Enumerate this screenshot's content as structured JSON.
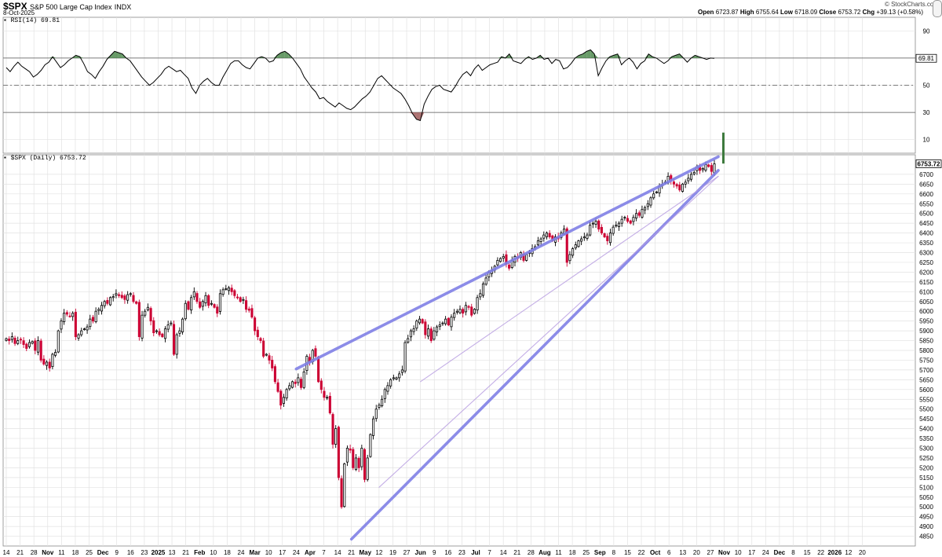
{
  "header": {
    "symbol": "$SPX",
    "description": "S&P 500 Large Cap Index",
    "exchange": "INDX",
    "date": "8-Oct-2025",
    "brand": "© StockCharts.com",
    "open_label": "Open",
    "open": "6723.87",
    "high_label": "High",
    "high": "6755.64",
    "low_label": "Low",
    "low": "6718.09",
    "close_label": "Close",
    "close": "6753.72",
    "chg_label": "Chg",
    "chg": "+39.13 (+0.58%)"
  },
  "chart_data": [
    {
      "type": "line",
      "panel": "rsi",
      "label": "RSI(14) 69.81",
      "last_value_label": "69.81",
      "ylim": [
        0,
        100
      ],
      "yticks": [
        10,
        30,
        50,
        70,
        90
      ],
      "reference_lines": [
        30,
        50,
        70
      ],
      "overbought": 70,
      "oversold": 30,
      "values": [
        63,
        60,
        64,
        67,
        64,
        62,
        60,
        56,
        58,
        61,
        65,
        67,
        71,
        67,
        63,
        65,
        68,
        70,
        72,
        71,
        66,
        60,
        58,
        55,
        60,
        64,
        69,
        72,
        75,
        74,
        73,
        70,
        68,
        64,
        60,
        56,
        53,
        50,
        52,
        55,
        58,
        62,
        64,
        62,
        60,
        61,
        58,
        55,
        48,
        44,
        50,
        53,
        55,
        52,
        50,
        50,
        56,
        61,
        66,
        68,
        68,
        65,
        63,
        62,
        66,
        70,
        71,
        70,
        67,
        68,
        72,
        74,
        75,
        73,
        70,
        66,
        62,
        56,
        52,
        48,
        45,
        40,
        41,
        38,
        36,
        34,
        37,
        35,
        33,
        32,
        34,
        37,
        40,
        42,
        45,
        50,
        55,
        57,
        54,
        51,
        48,
        46,
        44,
        40,
        35,
        29,
        25,
        24,
        36,
        42,
        47,
        49,
        50,
        47,
        46,
        45,
        49,
        54,
        58,
        60,
        57,
        62,
        65,
        61,
        63,
        65,
        66,
        67,
        71,
        70,
        73,
        68,
        67,
        66,
        69,
        71,
        69,
        70,
        72,
        69,
        70,
        66,
        69,
        68,
        62,
        63,
        66,
        70,
        72,
        73,
        75,
        76,
        73,
        57,
        63,
        68,
        71,
        72,
        73,
        65,
        68,
        70,
        67,
        62,
        66,
        68,
        73,
        71,
        70,
        68,
        66,
        68,
        71,
        72,
        73,
        70,
        67,
        70,
        72,
        71,
        70,
        69,
        70,
        69.81
      ],
      "shaded_overbought_x": [
        "Jul 3",
        "Jul 31",
        "Sep 22"
      ],
      "shaded_oversold_x": [
        "Apr 8"
      ]
    },
    {
      "type": "candlestick",
      "panel": "price",
      "label": "$SPX (Daily) 6753.72",
      "last_value_label": "6753.72",
      "ylim": [
        4800,
        6800
      ],
      "yticks": [
        4850,
        4900,
        4950,
        5000,
        5050,
        5100,
        5150,
        5200,
        5250,
        5300,
        5350,
        5400,
        5450,
        5500,
        5550,
        5600,
        5650,
        5700,
        5750,
        5800,
        5850,
        5900,
        5950,
        6000,
        6050,
        6100,
        6150,
        6200,
        6250,
        6300,
        6350,
        6400,
        6450,
        6500,
        6550,
        6600,
        6650,
        6700
      ],
      "x_tick_labels": [
        "14",
        "21",
        "28",
        "Nov",
        "11",
        "18",
        "25",
        "Dec",
        "9",
        "16",
        "23",
        "2025",
        "13",
        "21",
        "Feb",
        "10",
        "18",
        "24",
        "Mar",
        "10",
        "17",
        "24",
        "Apr",
        "7",
        "14",
        "21",
        "May",
        "12",
        "19",
        "27",
        "Jun",
        "9",
        "16",
        "23",
        "Jul",
        "7",
        "14",
        "21",
        "28",
        "Aug",
        "11",
        "18",
        "25",
        "Sep",
        "8",
        "15",
        "22",
        "Oct",
        "6",
        "13",
        "20",
        "27",
        "Nov",
        "10",
        "17",
        "24",
        "Dec",
        "8",
        "15",
        "22",
        "2026",
        "12",
        "20"
      ],
      "bold_tick_labels": [
        "Nov",
        "Dec",
        "2025",
        "Feb",
        "Mar",
        "Apr",
        "May",
        "Jun",
        "Jul",
        "Aug",
        "Sep",
        "Oct",
        "Nov",
        "Dec",
        "2026"
      ],
      "start_date": "2024-10-14",
      "end_date": "2025-10-08",
      "up_color": "#000000",
      "down_color": "#cc0033",
      "trendlines": [
        {
          "kind": "bold",
          "from": [
            "2025-03-10",
            5705
          ],
          "to": [
            "2025-10-10",
            6790
          ]
        },
        {
          "kind": "bold",
          "from": [
            "2025-04-07",
            4835
          ],
          "to": [
            "2025-10-10",
            6720
          ]
        },
        {
          "kind": "thin",
          "from": [
            "2025-04-21",
            5100
          ],
          "to": [
            "2025-10-10",
            6690
          ]
        },
        {
          "kind": "thin",
          "from": [
            "2025-05-12",
            5640
          ],
          "to": [
            "2025-10-10",
            6690
          ]
        }
      ],
      "rsi_spike_bar": {
        "from": 12,
        "to": 88
      },
      "closes": [
        5860,
        5850,
        5870,
        5835,
        5850,
        5855,
        5830,
        5810,
        5840,
        5845,
        5800,
        5850,
        5750,
        5730,
        5740,
        5710,
        5780,
        5790,
        5900,
        5950,
        5990,
        5985,
        5975,
        5990,
        5870,
        5880,
        5900,
        5910,
        5920,
        5960,
        5950,
        6000,
        6010,
        6030,
        6050,
        6040,
        6070,
        6075,
        6090,
        6080,
        6070,
        6060,
        6085,
        6090,
        6050,
        6040,
        5870,
        5980,
        6000,
        6020,
        5950,
        5890,
        5900,
        5880,
        5870,
        5910,
        5930,
        5940,
        5780,
        5880,
        5900,
        5960,
        6040,
        6010,
        6070,
        6100,
        6050,
        6020,
        6050,
        6080,
        6030,
        6040,
        6020,
        5990,
        6090,
        6110,
        6115,
        6120,
        6100,
        6080,
        6070,
        6050,
        6060,
        6010,
        6005,
        5970,
        5900,
        5870,
        5850,
        5770,
        5780,
        5750,
        5710,
        5640,
        5590,
        5520,
        5560,
        5600,
        5620,
        5640,
        5630,
        5660,
        5610,
        5690,
        5770,
        5740,
        5800,
        5770,
        5640,
        5600,
        5560,
        5560,
        5480,
        5320,
        5400,
        5150,
        5000,
        5220,
        5300,
        5290,
        5200,
        5250,
        5200,
        5300,
        5140,
        5250,
        5370,
        5450,
        5500,
        5520,
        5550,
        5600,
        5620,
        5650,
        5660,
        5660,
        5680,
        5700,
        5840,
        5860,
        5900,
        5910,
        5950,
        5960,
        5940,
        5880,
        5910,
        5850,
        5900,
        5920,
        5930,
        5940,
        5960,
        5930,
        5970,
        5990,
        6000,
        6010,
        5990,
        6030,
        6020,
        5980,
        6010,
        6070,
        6090,
        6140,
        6170,
        6200,
        6210,
        6230,
        6260,
        6270,
        6280,
        6240,
        6220,
        6260,
        6280,
        6270,
        6300,
        6260,
        6290,
        6300,
        6320,
        6330,
        6360,
        6370,
        6390,
        6400,
        6380,
        6360,
        6380,
        6370,
        6400,
        6420,
        6250,
        6290,
        6320,
        6340,
        6360,
        6370,
        6380,
        6390,
        6440,
        6450,
        6460,
        6420,
        6400,
        6380,
        6360,
        6400,
        6430,
        6440,
        6450,
        6470,
        6480,
        6460,
        6450,
        6480,
        6500,
        6490,
        6520,
        6530,
        6550,
        6580,
        6600,
        6610,
        6640,
        6650,
        6660,
        6690,
        6670,
        6650,
        6640,
        6620,
        6650,
        6660,
        6680,
        6700,
        6710,
        6740,
        6720,
        6730,
        6750,
        6740,
        6715,
        6753.72
      ]
    }
  ]
}
